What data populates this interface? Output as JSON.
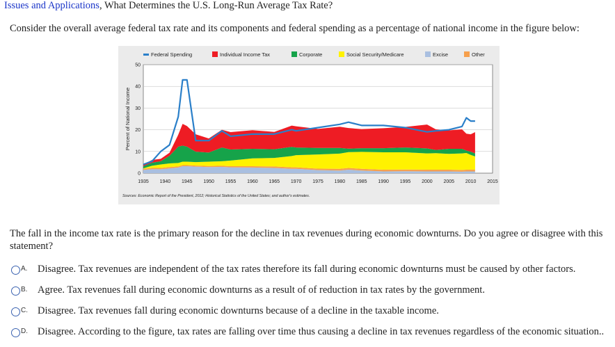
{
  "header": {
    "link_text": "Issues and Applications",
    "separator": ", ",
    "title": "What Determines the U.S. Long-Run Average Tax Rate?"
  },
  "prompt": "Consider the overall average federal tax rate and its components and federal spending as a percentage of national income in the figure below:",
  "question": "The fall in the income tax rate is the primary reason for the decline in tax revenues during economic downturns. Do you agree or disagree with this statement?",
  "options": [
    {
      "letter": "A.",
      "text": "Disagree. Tax revenues are independent of the tax rates therefore its fall during economic downturns must be caused by other factors."
    },
    {
      "letter": "B.",
      "text": "Agree. Tax revenues fall during economic downturns as a result of of reduction in tax rates by the government."
    },
    {
      "letter": "C.",
      "text": "Disagree. Tax revenues fall during economic downturns because of a decline in the taxable income."
    },
    {
      "letter": "D.",
      "text": "Disagree. According to the figure, tax rates are falling over time thus causing a decline in tax revenues regardless of the economic situation.."
    }
  ],
  "colors": {
    "spending": "#2a7fc9",
    "individual": "#ee1c24",
    "corporate": "#16a34a",
    "social": "#fff200",
    "excise": "#a9bfe0",
    "other": "#f6a04d"
  },
  "chart_data": {
    "type": "area",
    "ylabel": "Percent of National Income",
    "source": "Sources: Economic Report of the President, 2012; Historical Statistics of the United States; and author's estimates.",
    "legend": [
      "Federal Spending",
      "Individual Income Tax",
      "Corporate",
      "Social Security/Medicare",
      "Excise",
      "Other"
    ],
    "legend_position": "top",
    "xlim": [
      1935,
      2015
    ],
    "ylim": [
      0,
      50
    ],
    "xticks": [
      1935,
      1940,
      1945,
      1950,
      1955,
      1960,
      1965,
      1970,
      1975,
      1980,
      1985,
      1990,
      1995,
      2000,
      2005,
      2010,
      2015
    ],
    "yticks": [
      0,
      10,
      20,
      30,
      40,
      50
    ],
    "x": [
      1935,
      1937,
      1939,
      1941,
      1943,
      1944,
      1945,
      1947,
      1950,
      1953,
      1955,
      1960,
      1965,
      1969,
      1970,
      1975,
      1980,
      1982,
      1985,
      1990,
      1995,
      2000,
      2002,
      2005,
      2008,
      2009,
      2010,
      2011
    ],
    "series": [
      {
        "name": "Excise",
        "values": [
          1.5,
          1.8,
          1.8,
          2.2,
          2.6,
          3.2,
          3.2,
          3.0,
          2.8,
          2.9,
          2.7,
          2.6,
          2.4,
          2.0,
          2.0,
          1.4,
          1.2,
          1.6,
          1.2,
          0.8,
          0.9,
          0.8,
          0.8,
          0.8,
          0.7,
          0.8,
          0.8,
          0.8
        ]
      },
      {
        "name": "Other",
        "values": [
          0.5,
          0.6,
          0.6,
          0.6,
          0.5,
          0.5,
          0.5,
          0.5,
          0.5,
          0.5,
          0.5,
          0.6,
          0.7,
          0.7,
          0.7,
          0.7,
          0.8,
          0.8,
          0.8,
          0.8,
          0.8,
          0.8,
          0.8,
          0.8,
          0.8,
          0.8,
          0.8,
          0.8
        ]
      },
      {
        "name": "Social Security/Medicare",
        "values": [
          0.2,
          1.0,
          1.6,
          1.7,
          1.6,
          1.6,
          1.6,
          1.6,
          2.0,
          2.1,
          2.6,
          3.6,
          3.9,
          5.2,
          5.6,
          6.5,
          7.0,
          7.3,
          7.8,
          8.0,
          7.9,
          7.5,
          7.6,
          7.3,
          7.6,
          7.7,
          6.8,
          6.1
        ]
      },
      {
        "name": "Corporate",
        "values": [
          1.0,
          1.4,
          1.5,
          3.5,
          7.5,
          7.4,
          6.9,
          4.8,
          4.2,
          6.3,
          5.1,
          4.4,
          4.0,
          4.2,
          3.5,
          3.0,
          2.6,
          1.6,
          1.7,
          1.9,
          2.2,
          2.3,
          1.5,
          2.3,
          2.1,
          1.1,
          1.5,
          1.4
        ]
      },
      {
        "name": "Individual Income Tax",
        "values": [
          0.8,
          1.3,
          1.1,
          1.4,
          5.5,
          10.0,
          9.5,
          8.0,
          6.5,
          8.2,
          8.0,
          8.6,
          8.0,
          9.8,
          9.8,
          8.8,
          9.8,
          9.5,
          8.8,
          9.2,
          9.5,
          11.0,
          9.5,
          8.5,
          9.0,
          7.8,
          8.0,
          9.8
        ]
      },
      {
        "name": "Federal Spending",
        "values": [
          4.0,
          5.5,
          10.0,
          13.0,
          26.0,
          43.0,
          43.0,
          15.0,
          15.0,
          19.5,
          17.0,
          18.0,
          18.0,
          20.0,
          19.5,
          21.0,
          22.5,
          23.5,
          22.0,
          22.0,
          21.0,
          19.0,
          19.5,
          20.0,
          21.5,
          25.5,
          24.0,
          24.0
        ]
      }
    ]
  }
}
